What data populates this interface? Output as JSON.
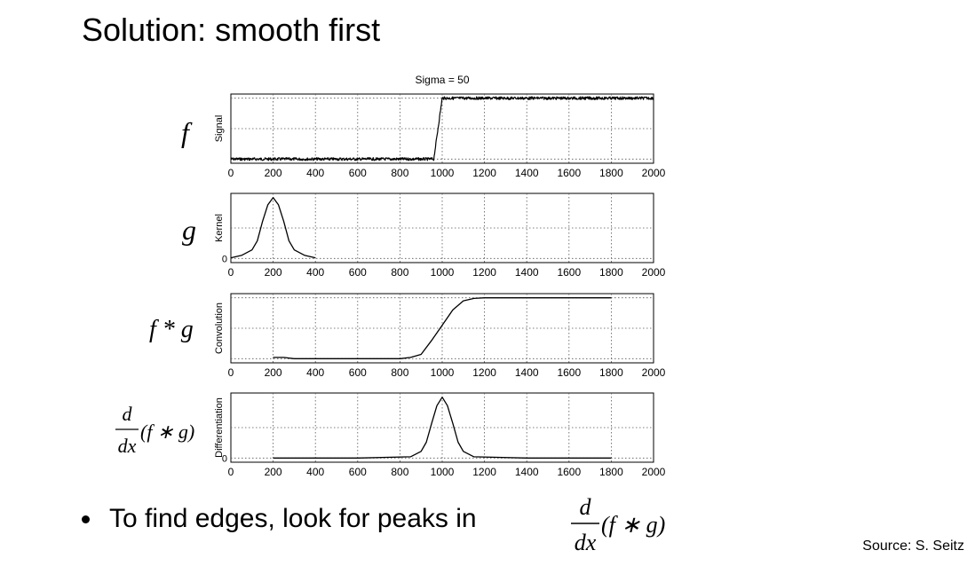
{
  "slide": {
    "title": "Solution: smooth first",
    "bullet": "To find edges, look for peaks in",
    "source": "Source: S. Seitz"
  },
  "chart_data": {
    "type": "line",
    "title": "Sigma = 50",
    "subplots": [
      {
        "id": "signal",
        "math_label": "f",
        "ylabel": "Signal",
        "xlim": [
          0,
          2000
        ],
        "xticks": [
          0,
          200,
          400,
          600,
          800,
          1000,
          1200,
          1400,
          1600,
          1800,
          2000
        ],
        "grid": true,
        "series": [
          {
            "x": [
              0,
              200,
              400,
              600,
              800,
              960,
              980,
              1000,
              1020,
              1200,
              1400,
              1600,
              1800,
              2000
            ],
            "y": [
              0,
              0,
              0,
              0,
              0,
              0,
              0.5,
              1,
              1,
              1,
              1,
              1,
              1,
              1
            ],
            "noise": true
          }
        ]
      },
      {
        "id": "kernel",
        "math_label": "g",
        "ylabel": "Kernel",
        "ytick_labels": [
          "0"
        ],
        "xlim": [
          0,
          2000
        ],
        "xticks": [
          0,
          200,
          400,
          600,
          800,
          1000,
          1200,
          1400,
          1600,
          1800,
          2000
        ],
        "grid": true,
        "series": [
          {
            "x": [
              0,
              50,
              100,
              125,
              150,
              175,
              200,
              225,
              250,
              275,
              300,
              350,
              400
            ],
            "y": [
              0.01,
              0.05,
              0.14,
              0.29,
              0.61,
              0.88,
              1,
              0.88,
              0.61,
              0.29,
              0.14,
              0.05,
              0.01
            ]
          }
        ]
      },
      {
        "id": "convolution",
        "math_label": "f * g",
        "ylabel": "Convolution",
        "xlim": [
          0,
          2000
        ],
        "xticks": [
          0,
          200,
          400,
          600,
          800,
          1000,
          1200,
          1400,
          1600,
          1800,
          2000
        ],
        "grid": true,
        "series": [
          {
            "x": [
              200,
              250,
              300,
              800,
              850,
              900,
              950,
              1000,
              1050,
              1100,
              1150,
              1200,
              1800
            ],
            "y": [
              0.02,
              0.02,
              0,
              0,
              0.02,
              0.07,
              0.3,
              0.55,
              0.8,
              0.95,
              0.99,
              1,
              1
            ]
          }
        ]
      },
      {
        "id": "differentiation",
        "math_label": "d/dx (f * g)",
        "ylabel": "Differentiation",
        "ytick_labels": [
          "0"
        ],
        "xlim": [
          0,
          2000
        ],
        "xticks": [
          0,
          200,
          400,
          600,
          800,
          1000,
          1200,
          1400,
          1600,
          1800,
          2000
        ],
        "grid": true,
        "series": [
          {
            "x": [
              200,
              400,
              600,
              850,
              900,
              925,
              950,
              975,
              1000,
              1025,
              1050,
              1075,
              1100,
              1150,
              1400,
              1600,
              1800
            ],
            "y": [
              0,
              0,
              0,
              0.02,
              0.11,
              0.26,
              0.57,
              0.86,
              1,
              0.86,
              0.57,
              0.26,
              0.11,
              0.02,
              0,
              0,
              0
            ]
          }
        ]
      }
    ]
  },
  "formula": {
    "numerator": "d",
    "denominator": "dx",
    "expression": "(f ∗ g)"
  }
}
